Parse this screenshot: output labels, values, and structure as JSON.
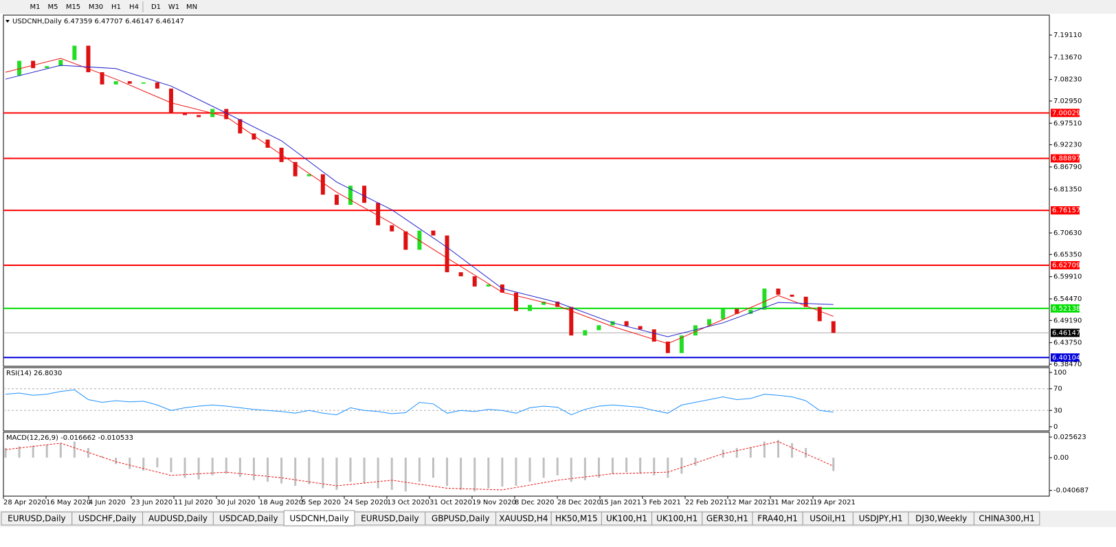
{
  "toolbar": {
    "buttons": [
      "M1",
      "M5",
      "M15",
      "M30",
      "H1",
      "H4",
      "D1",
      "W1",
      "MN"
    ]
  },
  "main_chart": {
    "type": "candlestick",
    "header": "USDCNH,Daily  6.47359 6.47707 6.46147 6.46147",
    "ylim": [
      6.3796,
      7.2399
    ],
    "yticks": [
      {
        "value": 7.1911,
        "label": "7.19110"
      },
      {
        "value": 7.1367,
        "label": "7.13670"
      },
      {
        "value": 7.0823,
        "label": "7.08230"
      },
      {
        "value": 7.0295,
        "label": "7.02950"
      },
      {
        "value": 6.9751,
        "label": "6.97510"
      },
      {
        "value": 6.9223,
        "label": "6.92230"
      },
      {
        "value": 6.8679,
        "label": "6.86790"
      },
      {
        "value": 6.8135,
        "label": "6.81350"
      },
      {
        "value": 6.7063,
        "label": "6.70630"
      },
      {
        "value": 6.6535,
        "label": "6.65350"
      },
      {
        "value": 6.5991,
        "label": "6.59910"
      },
      {
        "value": 6.5447,
        "label": "6.54470"
      },
      {
        "value": 6.4919,
        "label": "6.49190"
      },
      {
        "value": 6.4375,
        "label": "6.43750"
      },
      {
        "value": 6.3847,
        "label": "6.38470"
      }
    ],
    "closes": [
      7.092,
      7.128,
      7.11,
      7.115,
      7.13,
      7.165,
      7.1,
      7.07,
      7.078,
      7.072,
      7.075,
      7.06,
      7.0,
      6.995,
      6.99,
      7.01,
      6.985,
      6.95,
      6.935,
      6.915,
      6.88,
      6.845,
      6.85,
      6.8,
      6.775,
      6.822,
      6.78,
      6.725,
      6.71,
      6.665,
      6.712,
      6.7,
      6.61,
      6.6,
      6.575,
      6.58,
      6.56,
      6.515,
      6.53,
      6.538,
      6.525,
      6.455,
      6.468,
      6.48,
      6.49,
      6.478,
      6.47,
      6.44,
      6.412,
      6.455,
      6.48,
      6.495,
      6.52,
      6.508,
      6.518,
      6.57,
      6.555,
      6.55,
      6.525,
      6.49,
      6.46147
    ],
    "up_color": "#22dd22",
    "down_color": "#dd1111",
    "moving_averages": [
      {
        "color": "#ee1111",
        "values": [
          7.1,
          7.134,
          7.083,
          7.025,
          6.991,
          6.898,
          6.806,
          6.73,
          6.645,
          6.561,
          6.528,
          6.477,
          6.435,
          6.494,
          6.553,
          6.502
        ]
      },
      {
        "color": "#2222cc",
        "values": [
          7.083,
          7.117,
          7.109,
          7.066,
          7.0,
          6.932,
          6.831,
          6.763,
          6.671,
          6.57,
          6.536,
          6.486,
          6.452,
          6.486,
          6.536,
          6.531
        ]
      }
    ],
    "levels": [
      {
        "value": 7.00029,
        "color": "#ff0000"
      },
      {
        "value": 6.88897,
        "color": "#ff0000"
      },
      {
        "value": 6.76157,
        "color": "#ff0000"
      },
      {
        "value": 6.62709,
        "color": "#ff0000"
      },
      {
        "value": 6.52138,
        "color": "#00dd00"
      },
      {
        "value": 6.40104,
        "color": "#0000dd"
      },
      {
        "value": 6.46147,
        "color": "#000000"
      }
    ],
    "dates": [
      "28 Apr 2020",
      "16 May 2020",
      "4 Jun 2020",
      "23 Jun 2020",
      "11 Jul 2020",
      "30 Jul 2020",
      "18 Aug 2020",
      "5 Sep 2020",
      "24 Sep 2020",
      "13 Oct 2020",
      "31 Oct 2020",
      "19 Nov 2020",
      "8 Dec 2020",
      "28 Dec 2020",
      "15 Jan 2021",
      "3 Feb 2021",
      "22 Feb 2021",
      "12 Mar 2021",
      "31 Mar 2021",
      "19 Apr 2021"
    ]
  },
  "rsi_chart": {
    "type": "line",
    "header": "RSI(14) 26.8030",
    "color": "#1e90ff",
    "ylim": [
      0,
      100
    ],
    "yticks": [
      100,
      70,
      30,
      0
    ],
    "levels": [
      70,
      30
    ],
    "values": [
      60,
      62,
      58,
      60,
      65,
      68,
      50,
      45,
      48,
      46,
      47,
      40,
      30,
      35,
      38,
      40,
      38,
      35,
      32,
      30,
      28,
      25,
      30,
      25,
      22,
      35,
      30,
      28,
      24,
      26,
      45,
      42,
      25,
      30,
      28,
      32,
      30,
      25,
      35,
      38,
      36,
      22,
      32,
      38,
      40,
      38,
      36,
      30,
      25,
      40,
      45,
      50,
      55,
      50,
      52,
      60,
      58,
      55,
      48,
      30,
      27
    ]
  },
  "macd_chart": {
    "type": "bar",
    "header": "MACD(12,26,9) -0.016662 -0.010533",
    "color": "#c0c0c0",
    "signal_color": "#ee1111",
    "ylim": [
      -0.0478,
      0.0316
    ],
    "yticks": [
      0.025623,
      {
        "value": 0,
        "label": "0.00"
      },
      -0.040687
    ],
    "values": [
      0.012,
      0.014,
      0.015,
      0.016,
      0.018,
      0.02,
      0.012,
      0.002,
      -0.008,
      -0.014,
      -0.016,
      -0.012,
      -0.018,
      -0.025,
      -0.027,
      -0.022,
      -0.02,
      -0.024,
      -0.028,
      -0.03,
      -0.032,
      -0.035,
      -0.033,
      -0.038,
      -0.04,
      -0.03,
      -0.032,
      -0.038,
      -0.04,
      -0.042,
      -0.03,
      -0.025,
      -0.035,
      -0.04,
      -0.042,
      -0.038,
      -0.036,
      -0.035,
      -0.03,
      -0.025,
      -0.022,
      -0.03,
      -0.028,
      -0.025,
      -0.02,
      -0.018,
      -0.02,
      -0.022,
      -0.025,
      -0.02,
      -0.01,
      0.0,
      0.01,
      0.012,
      0.013,
      0.02,
      0.022,
      0.018,
      0.012,
      0.0,
      -0.016662
    ],
    "signal": [
      0.01,
      0.018,
      -0.005,
      -0.022,
      -0.018,
      -0.025,
      -0.035,
      -0.028,
      -0.038,
      -0.04,
      -0.028,
      -0.02,
      -0.018,
      0.005,
      0.02,
      -0.010533
    ]
  },
  "tabs": {
    "active": 4,
    "items": [
      "EURUSD,Daily",
      "USDCHF,Daily",
      "AUDUSD,Daily",
      "USDCAD,Daily",
      "USDCNH,Daily",
      "EURUSD,Daily",
      "GBPUSD,Daily",
      "XAUUSD,H4",
      "HK50,M15",
      "UK100,H1",
      "UK100,H1",
      "GER30,H1",
      "FRA40,H1",
      "USOil,H1",
      "USDJPY,H1",
      "DJ30,Weekly",
      "CHINA300,H1"
    ]
  }
}
